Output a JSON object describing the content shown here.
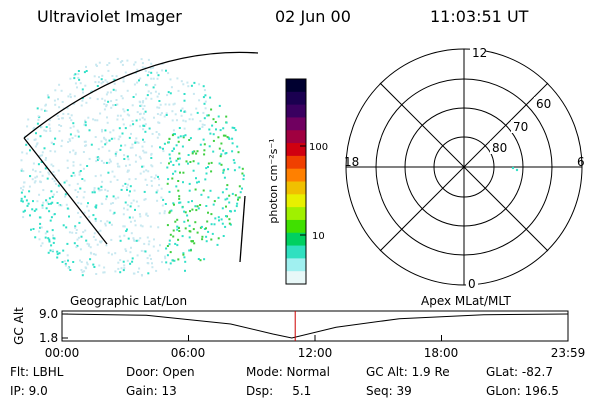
{
  "header": {
    "title": "Ultraviolet Imager",
    "date": "02 Jun 00",
    "time": "11:03:51 UT"
  },
  "colorbar": {
    "unit": "photon cm⁻²s⁻¹",
    "ticks": [
      "100",
      "10"
    ],
    "colors": [
      "#000030",
      "#1a0050",
      "#3a0060",
      "#700060",
      "#a00040",
      "#d00010",
      "#f04000",
      "#ff8000",
      "#f0c000",
      "#e8f000",
      "#a0f000",
      "#40e000",
      "#00d060",
      "#30e0c0",
      "#a0f0f0",
      "#e8f8f8"
    ]
  },
  "polar": {
    "mlt_labels": {
      "top": "12",
      "bottom": "0",
      "left": "18",
      "right": "6"
    },
    "lat_labels": [
      "60",
      "70",
      "80"
    ]
  },
  "timeline": {
    "left_label": "Geographic Lat/Lon",
    "right_label": "Apex MLat/MLT",
    "y_axis_label": "GC Alt",
    "y_ticks": [
      "9.0",
      "1.8"
    ],
    "x_ticks": [
      "00:00",
      "06:00",
      "12:00",
      "18:00",
      "23:59"
    ],
    "altitude_profile_re": [
      {
        "hour": 0,
        "alt": 9.0
      },
      {
        "hour": 4,
        "alt": 8.6
      },
      {
        "hour": 8,
        "alt": 6.0
      },
      {
        "hour": 10,
        "alt": 3.0
      },
      {
        "hour": 10.9,
        "alt": 1.8
      },
      {
        "hour": 13,
        "alt": 5.0
      },
      {
        "hour": 16,
        "alt": 7.6
      },
      {
        "hour": 20,
        "alt": 8.8
      },
      {
        "hour": 24,
        "alt": 9.0
      }
    ],
    "marker_hour": 11.06
  },
  "info": {
    "flt": "Flt: LBHL",
    "ip": "IP:  9.0",
    "door": "Door: Open",
    "gain": "Gain: 13",
    "mode": "Mode: Normal",
    "dsp": "Dsp:     5.1",
    "gcalt": "GC Alt: 1.9 Re",
    "seq": "Seq: 39",
    "glat": "GLat: -82.7",
    "glon": "GLon: 196.5"
  },
  "colors": {
    "marker": "#cc0000",
    "speckle_cyan": "#30e0c8",
    "speckle_green": "#40d040",
    "speckle_pale": "#c8e8f0"
  }
}
